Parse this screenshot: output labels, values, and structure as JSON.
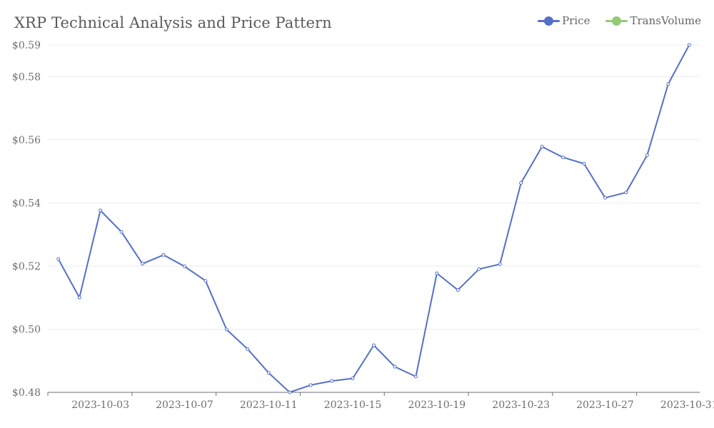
{
  "chart_data": {
    "type": "line",
    "title": "XRP Technical Analysis and Price Pattern",
    "legend_position": "top-right",
    "grid": true,
    "colors": {
      "Price": "#5470c6",
      "TransVolume": "#91cc75"
    },
    "legend": [
      "Price",
      "TransVolume"
    ],
    "x": [
      "2023-10-01",
      "2023-10-02",
      "2023-10-03",
      "2023-10-04",
      "2023-10-05",
      "2023-10-06",
      "2023-10-07",
      "2023-10-08",
      "2023-10-09",
      "2023-10-10",
      "2023-10-11",
      "2023-10-12",
      "2023-10-13",
      "2023-10-14",
      "2023-10-15",
      "2023-10-16",
      "2023-10-17",
      "2023-10-18",
      "2023-10-19",
      "2023-10-20",
      "2023-10-21",
      "2023-10-22",
      "2023-10-23",
      "2023-10-24",
      "2023-10-25",
      "2023-10-26",
      "2023-10-27",
      "2023-10-28",
      "2023-10-29",
      "2023-10-30",
      "2023-10-31"
    ],
    "x_tick_labels": [
      "2023-10-03",
      "2023-10-07",
      "2023-10-11",
      "2023-10-15",
      "2023-10-19",
      "2023-10-23",
      "2023-10-27",
      "2023-10-31"
    ],
    "y_tick_labels": [
      "$0.48",
      "$0.50",
      "$0.52",
      "$0.54",
      "$0.56",
      "$0.58",
      "$0.59"
    ],
    "ylim": [
      0.48,
      0.59
    ],
    "series": [
      {
        "name": "Price",
        "values": [
          0.5222,
          0.51,
          0.5376,
          0.5308,
          0.5207,
          0.5235,
          0.5199,
          0.5153,
          0.4999,
          0.4937,
          0.4862,
          0.48,
          0.4823,
          0.4836,
          0.4844,
          0.4949,
          0.4881,
          0.485,
          0.5177,
          0.5124,
          0.519,
          0.5206,
          0.5463,
          0.5578,
          0.5544,
          0.5524,
          0.5416,
          0.5433,
          0.5551,
          0.5776,
          0.59
        ]
      }
    ]
  }
}
